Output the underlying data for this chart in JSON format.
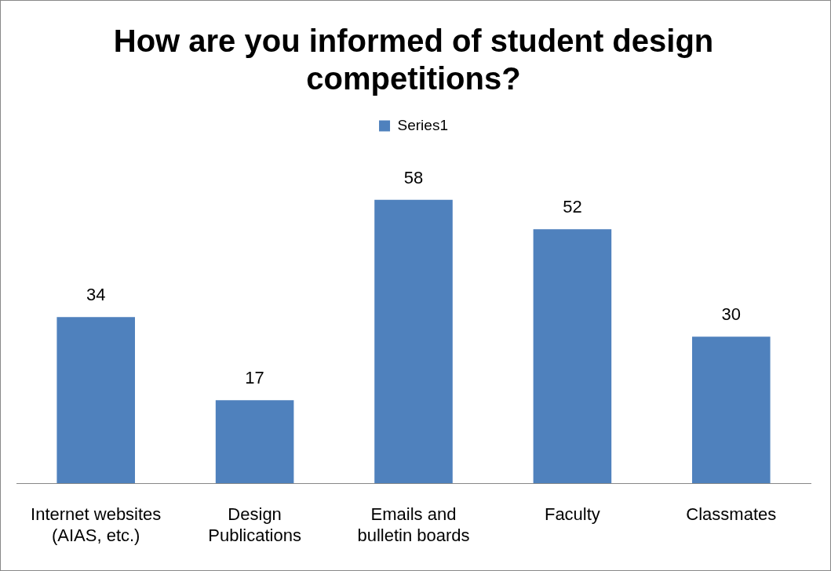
{
  "chart_data": {
    "type": "bar",
    "title": "How are you informed of student design competitions?",
    "categories": [
      "Internet websites (AIAS, etc.)",
      "Design Publications",
      "Emails and bulletin boards",
      "Faculty",
      "Classmates"
    ],
    "series": [
      {
        "name": "Series1",
        "color": "#4f81bd",
        "values": [
          34,
          17,
          58,
          52,
          30
        ]
      }
    ],
    "data_labels": true,
    "legend": "top"
  }
}
